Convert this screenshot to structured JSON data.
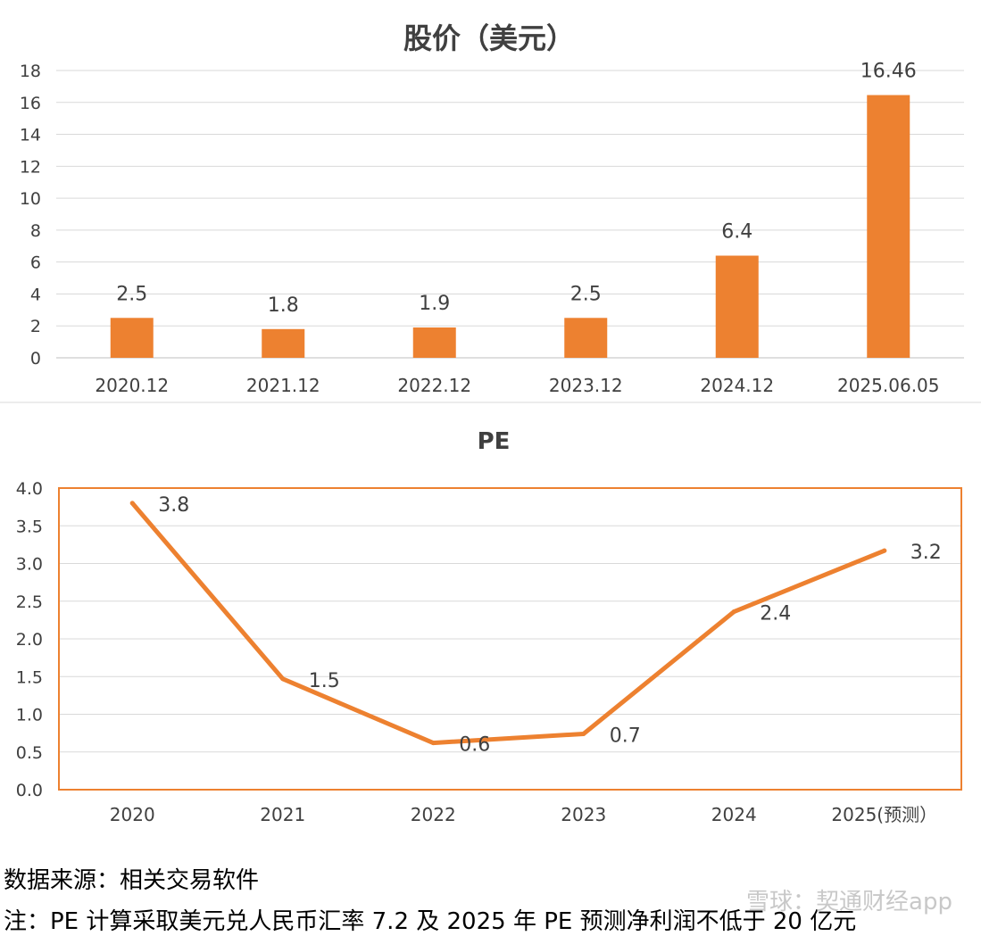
{
  "chart_data": [
    {
      "type": "bar",
      "title": "股价（美元）",
      "categories": [
        "2020.12",
        "2021.12",
        "2022.12",
        "2023.12",
        "2024.12",
        "2025.06.05"
      ],
      "values": [
        2.5,
        1.8,
        1.9,
        2.5,
        6.4,
        16.46
      ],
      "data_labels": [
        "2.5",
        "1.8",
        "1.9",
        "2.5",
        "6.4",
        "16.46"
      ],
      "yticks": [
        "0",
        "2",
        "4",
        "6",
        "8",
        "10",
        "12",
        "14",
        "16",
        "18"
      ],
      "ylim": [
        0,
        18
      ],
      "grid": true,
      "color": "#ED8130"
    },
    {
      "type": "line",
      "title": "PE",
      "categories": [
        "2020",
        "2021",
        "2022",
        "2023",
        "2024",
        "2025(预测）"
      ],
      "values": [
        3.8,
        1.47,
        0.62,
        0.74,
        2.36,
        3.17
      ],
      "data_labels": [
        "3.8",
        "1.5",
        "0.6",
        "0.7",
        "2.4",
        "3.2"
      ],
      "yticks": [
        "0.0",
        "0.5",
        "1.0",
        "1.5",
        "2.0",
        "2.5",
        "3.0",
        "3.5",
        "4.0"
      ],
      "ylim": [
        0,
        4
      ],
      "grid": true,
      "color": "#ED8130"
    }
  ],
  "notes": {
    "source": "数据来源：相关交易软件",
    "footnote": "注：PE 计算采取美元兑人民币汇率 7.2 及 2025 年 PE 预测净利润不低于 20 亿元"
  },
  "watermark": "雪球：契通财经app"
}
